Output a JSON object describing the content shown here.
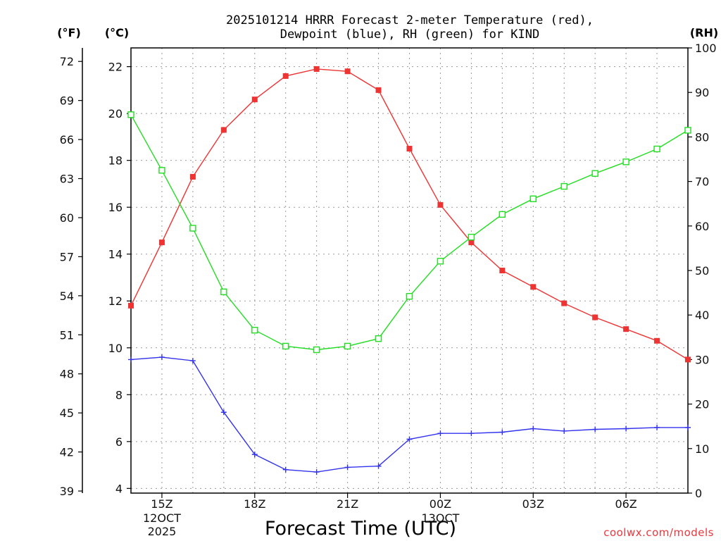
{
  "chart_data": {
    "type": "line",
    "title_line1": "2025101214 HRRR Forecast 2-meter Temperature (red),",
    "title_line2": "Dewpoint (blue), RH (green) for KIND",
    "xlabel": "Forecast Time (UTC)",
    "credit": "coolwx.com/models",
    "units": {
      "fahrenheit": "(°F)",
      "celsius": "(°C)",
      "rh": "(RH)"
    },
    "x_hours": [
      14,
      15,
      16,
      17,
      18,
      19,
      20,
      21,
      22,
      23,
      24,
      25,
      26,
      27,
      28,
      29,
      30,
      31,
      32
    ],
    "xlim": [
      14,
      32
    ],
    "x_ticks": [
      {
        "hour": 15,
        "label": "15Z",
        "sub1": "12OCT",
        "sub2": "2025"
      },
      {
        "hour": 18,
        "label": "18Z",
        "sub1": "",
        "sub2": ""
      },
      {
        "hour": 21,
        "label": "21Z",
        "sub1": "",
        "sub2": ""
      },
      {
        "hour": 24,
        "label": "00Z",
        "sub1": "13OCT",
        "sub2": ""
      },
      {
        "hour": 27,
        "label": "03Z",
        "sub1": "",
        "sub2": ""
      },
      {
        "hour": 30,
        "label": "06Z",
        "sub1": "",
        "sub2": ""
      }
    ],
    "left_c_axis": {
      "range": [
        3.8,
        22.8
      ],
      "ticks": [
        4,
        6,
        8,
        10,
        12,
        14,
        16,
        18,
        20,
        22
      ]
    },
    "left_f_axis": {
      "ticks": [
        39,
        42,
        45,
        48,
        51,
        54,
        57,
        60,
        63,
        66,
        69,
        72
      ]
    },
    "right_rh_axis": {
      "range": [
        0,
        100
      ],
      "ticks": [
        0,
        10,
        20,
        30,
        40,
        50,
        60,
        70,
        80,
        90,
        100
      ]
    },
    "series": [
      {
        "name": "2-meter Temperature",
        "axis": "celsius",
        "color": "#ee3333",
        "marker": "filled-square",
        "values": [
          11.8,
          14.5,
          17.3,
          19.3,
          20.6,
          21.6,
          21.9,
          21.8,
          21.0,
          18.5,
          16.1,
          14.5,
          13.3,
          12.6,
          11.9,
          11.3,
          10.8,
          10.3,
          9.5
        ]
      },
      {
        "name": "Dewpoint",
        "axis": "celsius",
        "color": "#3333ee",
        "marker": "plus",
        "values": [
          9.5,
          9.6,
          9.45,
          7.25,
          5.45,
          4.8,
          4.7,
          4.9,
          4.95,
          6.1,
          6.35,
          6.35,
          6.4,
          6.55,
          6.45,
          6.52,
          6.55,
          6.6,
          6.6
        ]
      },
      {
        "name": "RH",
        "axis": "rh",
        "color": "#22dd22",
        "marker": "open-square",
        "values": [
          85.0,
          72.5,
          59.5,
          45.2,
          36.6,
          33.0,
          32.2,
          33.0,
          34.7,
          44.2,
          52.1,
          57.5,
          62.6,
          66.1,
          68.9,
          71.8,
          74.4,
          77.3,
          81.5
        ]
      }
    ]
  }
}
